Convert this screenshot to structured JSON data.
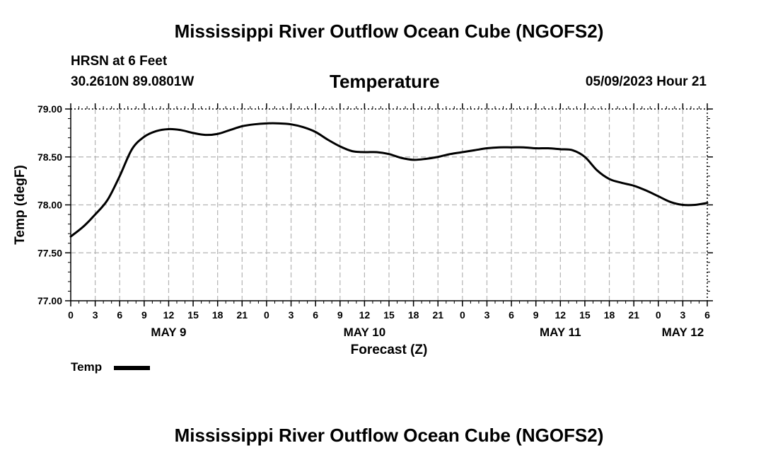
{
  "header": {
    "title": "Mississippi River Outflow Ocean Cube (NGOFS2)",
    "station": "HRSN at 6 Feet",
    "coords": "30.2610N  89.0801W",
    "variable": "Temperature",
    "datetime": "05/09/2023 Hour 21"
  },
  "footer": {
    "title": "Mississippi River Outflow Ocean Cube (NGOFS2)"
  },
  "legend": {
    "label": "Temp"
  },
  "colors": {
    "line": "#000000",
    "grid": "#b3b3b3"
  },
  "chart_data": {
    "type": "line",
    "title": "Temperature",
    "xlabel": "Forecast (Z)",
    "ylabel": "Temp (degF)",
    "x_unit": "hours since MAY 9 00Z",
    "xlim": [
      0,
      78
    ],
    "ylim": [
      77.0,
      79.0
    ],
    "yticks": [
      "77.00",
      "77.50",
      "78.00",
      "78.50",
      "79.00"
    ],
    "ytick_values": [
      77.0,
      77.5,
      78.0,
      78.5,
      79.0
    ],
    "xticks": [
      0,
      3,
      6,
      9,
      12,
      15,
      18,
      21,
      24,
      27,
      30,
      33,
      36,
      39,
      42,
      45,
      48,
      51,
      54,
      57,
      60,
      63,
      66,
      69,
      72,
      75,
      78
    ],
    "xtick_labels": [
      "0",
      "3",
      "6",
      "9",
      "12",
      "15",
      "18",
      "21",
      "0",
      "3",
      "6",
      "9",
      "12",
      "15",
      "18",
      "21",
      "0",
      "3",
      "6",
      "9",
      "12",
      "15",
      "18",
      "21",
      "0",
      "3",
      "6"
    ],
    "date_labels": [
      {
        "label": "MAY 9",
        "x": 12
      },
      {
        "label": "MAY 10",
        "x": 36
      },
      {
        "label": "MAY 11",
        "x": 60
      },
      {
        "label": "MAY 12",
        "x": 75
      }
    ],
    "grid": true,
    "series": [
      {
        "name": "Temp",
        "x": [
          0,
          1.5,
          3,
          4.5,
          6,
          7.5,
          9,
          10.5,
          12,
          13.5,
          15,
          16.5,
          18,
          19.5,
          21,
          22.5,
          24,
          25.5,
          27,
          28.5,
          30,
          31.5,
          33,
          34.5,
          36,
          37.5,
          39,
          40.5,
          42,
          43.5,
          45,
          46.5,
          48,
          49.5,
          51,
          52.5,
          54,
          55.5,
          57,
          58.5,
          60,
          61.5,
          63,
          64.5,
          66,
          67.5,
          69,
          70.5,
          72,
          73.5,
          75,
          76.5,
          78
        ],
        "values": [
          77.67,
          77.77,
          77.9,
          78.05,
          78.3,
          78.58,
          78.71,
          78.77,
          78.79,
          78.78,
          78.75,
          78.73,
          78.74,
          78.78,
          78.82,
          78.84,
          78.85,
          78.85,
          78.84,
          78.81,
          78.76,
          78.68,
          78.61,
          78.56,
          78.55,
          78.55,
          78.53,
          78.49,
          78.47,
          78.48,
          78.5,
          78.53,
          78.55,
          78.57,
          78.59,
          78.6,
          78.6,
          78.6,
          78.59,
          78.59,
          78.58,
          78.57,
          78.5,
          78.36,
          78.27,
          78.23,
          78.2,
          78.15,
          78.09,
          78.03,
          78.0,
          78.0,
          78.02
        ]
      }
    ]
  }
}
